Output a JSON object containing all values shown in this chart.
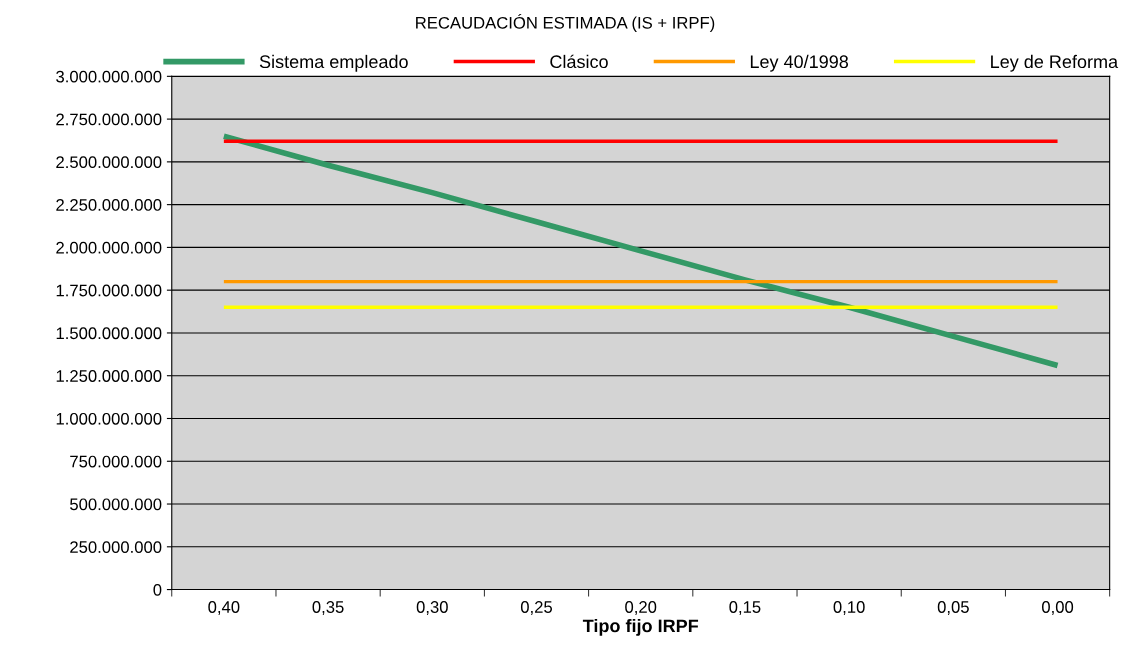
{
  "chart_data": {
    "type": "line",
    "title": "RECAUDACIÓN ESTIMADA (IS + IRPF)",
    "xlabel": "Tipo fijo IRPF",
    "categories": [
      "0,40",
      "0,35",
      "0,30",
      "0,25",
      "0,20",
      "0,15",
      "0,10",
      "0,05",
      "0,00"
    ],
    "series": [
      {
        "name": "Sistema empleado",
        "color": "#339966",
        "values": [
          2650000000,
          2480000000,
          2320000000,
          2150000000,
          1980000000,
          1810000000,
          1650000000,
          1480000000,
          1310000000
        ]
      },
      {
        "name": "Clásico",
        "color": "#ff0000",
        "values": [
          2620000000,
          2620000000,
          2620000000,
          2620000000,
          2620000000,
          2620000000,
          2620000000,
          2620000000,
          2620000000
        ]
      },
      {
        "name": "Ley 40/1998",
        "color": "#ff9900",
        "values": [
          1800000000,
          1800000000,
          1800000000,
          1800000000,
          1800000000,
          1800000000,
          1800000000,
          1800000000,
          1800000000
        ]
      },
      {
        "name": "Ley de Reforma",
        "color": "#ffff00",
        "values": [
          1650000000,
          1650000000,
          1650000000,
          1650000000,
          1650000000,
          1650000000,
          1650000000,
          1650000000,
          1650000000
        ]
      }
    ],
    "ylim": [
      0,
      3000000000
    ],
    "yticks": [
      0,
      {
        "value": 250000000,
        "label": "250.000.000"
      },
      {
        "value": 500000000,
        "label": "500.000.000"
      },
      {
        "value": 750000000,
        "label": "750.000.000"
      },
      {
        "value": 1000000000,
        "label": "1.000.000.000"
      },
      {
        "value": 1250000000,
        "label": "1.250.000.000"
      },
      {
        "value": 1500000000,
        "label": "1.500.000.000"
      },
      {
        "value": 1750000000,
        "label": "1.750.000.000"
      },
      {
        "value": 2000000000,
        "label": "2.000.000.000"
      },
      {
        "value": 2250000000,
        "label": "2.250.000.000"
      },
      {
        "value": 2500000000,
        "label": "2.500.000.000"
      },
      {
        "value": 2750000000,
        "label": "2.750.000.000"
      },
      {
        "value": 3000000000,
        "label": "3.000.000.000"
      }
    ],
    "grid": "y",
    "legend": "top",
    "marker": "none",
    "line_style": "solid"
  }
}
